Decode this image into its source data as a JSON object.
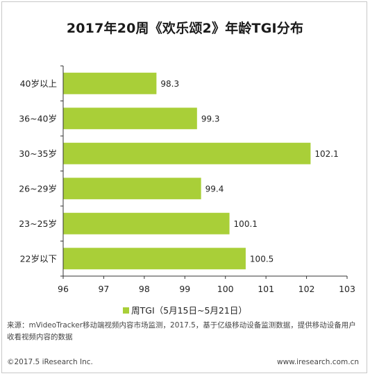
{
  "chart_data": {
    "type": "bar",
    "orientation": "horizontal",
    "title": "2017年20周《欢乐颂2》年龄TGI分布",
    "categories": [
      "40岁以上",
      "36~40岁",
      "30~35岁",
      "26~29岁",
      "23~25岁",
      "22岁以下"
    ],
    "series": [
      {
        "name": "周TGI（5月15日~5月21日）",
        "values": [
          98.3,
          99.3,
          102.1,
          99.4,
          100.1,
          100.5
        ]
      }
    ],
    "xlim": [
      96,
      103
    ],
    "xticks": [
      "96",
      "97",
      "98",
      "99",
      "100",
      "101",
      "102",
      "103"
    ],
    "grid": false,
    "legend_position": "bottom",
    "bar_color": "#a9cf38"
  },
  "source_text": "来源：mVideoTracker移动端视频内容市场监测，2017.5，基于亿级移动设备监测数据，提供移动设备用户收看视频内容的数据",
  "footer": {
    "copyright": "©2017.5 iResearch Inc.",
    "website": "www.iresearch.com.cn"
  }
}
